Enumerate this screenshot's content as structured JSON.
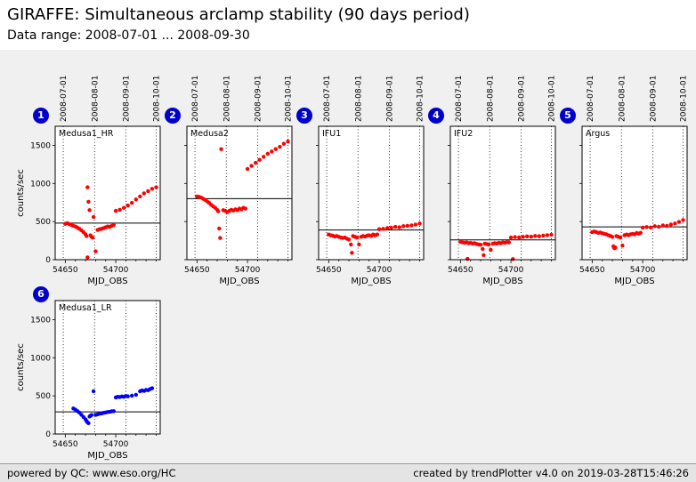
{
  "header": {
    "title": "GIRAFFE: Simultaneous arclamp stability (90 days period)",
    "subtitle": "Data range: 2008-07-01 ... 2008-09-30"
  },
  "footer": {
    "powered_by": "powered by QC:",
    "link": "www.eso.org/HC",
    "created": "created by trendPlotter v4.0 on 2019-03-28T15:46:26"
  },
  "colors": {
    "badge": "#0000cc",
    "red": "#ff0000",
    "blue": "#0000ff",
    "page_background": "#f0f0f0",
    "plot_background": "#ffffff"
  },
  "axis": {
    "xlabel": "MJD_OBS",
    "ylabel": "counts/sec",
    "xlim": [
      54640,
      54744
    ],
    "ylim": [
      0,
      1750
    ],
    "xticks": [
      54650,
      54700
    ],
    "yticks": [
      0,
      500,
      1000,
      1500
    ],
    "date_ticks": [
      {
        "label": "2008-07-01",
        "mjd": 54648
      },
      {
        "label": "2008-08-01",
        "mjd": 54679
      },
      {
        "label": "2008-09-01",
        "mjd": 54710
      },
      {
        "label": "2008-10-01",
        "mjd": 54740
      }
    ]
  },
  "chart_data": [
    {
      "index": 1,
      "row": 1,
      "col": 1,
      "type": "scatter",
      "title": "Medusa1_HR",
      "color": "#ff0000",
      "ref_line": 480,
      "x": [
        54650,
        54652,
        54654,
        54656,
        54658,
        54660,
        54662,
        54664,
        54666,
        54668,
        54670,
        54671,
        54672,
        54672,
        54673,
        54674,
        54675,
        54676,
        54677,
        54678,
        54680,
        54682,
        54684,
        54686,
        54688,
        54690,
        54692,
        54694,
        54696,
        54698,
        54700,
        54704,
        54708,
        54712,
        54716,
        54720,
        54724,
        54728,
        54732,
        54736,
        54740
      ],
      "y": [
        470,
        480,
        465,
        455,
        445,
        435,
        420,
        405,
        385,
        360,
        335,
        310,
        950,
        30,
        760,
        650,
        320,
        300,
        290,
        560,
        110,
        390,
        400,
        405,
        415,
        425,
        435,
        430,
        445,
        455,
        640,
        655,
        680,
        710,
        745,
        790,
        830,
        870,
        900,
        930,
        950
      ]
    },
    {
      "index": 2,
      "row": 1,
      "col": 2,
      "type": "scatter",
      "title": "Medusa2",
      "color": "#ff0000",
      "ref_line": 800,
      "x": [
        54650,
        54652,
        54654,
        54656,
        54658,
        54660,
        54662,
        54664,
        54666,
        54668,
        54670,
        54671,
        54672,
        54673,
        54674,
        54676,
        54678,
        54680,
        54682,
        54684,
        54686,
        54688,
        54690,
        54692,
        54694,
        54696,
        54698,
        54700,
        54704,
        54708,
        54712,
        54716,
        54720,
        54724,
        54728,
        54732,
        54736,
        54740
      ],
      "y": [
        830,
        825,
        815,
        800,
        785,
        765,
        745,
        720,
        700,
        680,
        655,
        635,
        410,
        285,
        1450,
        650,
        640,
        625,
        640,
        655,
        645,
        660,
        650,
        670,
        660,
        680,
        670,
        1190,
        1230,
        1270,
        1310,
        1350,
        1390,
        1420,
        1450,
        1480,
        1520,
        1550
      ]
    },
    {
      "index": 3,
      "row": 1,
      "col": 3,
      "type": "scatter",
      "title": "IFU1",
      "color": "#ff0000",
      "ref_line": 390,
      "x": [
        54650,
        54652,
        54654,
        54656,
        54658,
        54660,
        54662,
        54664,
        54666,
        54668,
        54670,
        54672,
        54673,
        54674,
        54676,
        54678,
        54680,
        54682,
        54684,
        54686,
        54688,
        54690,
        54692,
        54694,
        54696,
        54698,
        54700,
        54704,
        54708,
        54712,
        54716,
        54720,
        54724,
        54728,
        54732,
        54736,
        54740
      ],
      "y": [
        330,
        320,
        315,
        305,
        310,
        300,
        290,
        285,
        290,
        275,
        265,
        200,
        90,
        310,
        300,
        290,
        200,
        300,
        310,
        305,
        315,
        320,
        310,
        330,
        320,
        330,
        400,
        405,
        415,
        420,
        430,
        425,
        440,
        445,
        450,
        460,
        475
      ]
    },
    {
      "index": 4,
      "row": 1,
      "col": 4,
      "type": "scatter",
      "title": "IFU2",
      "color": "#ff0000",
      "ref_line": 260,
      "x": [
        54650,
        54652,
        54654,
        54656,
        54657,
        54658,
        54660,
        54662,
        54664,
        54666,
        54668,
        54670,
        54672,
        54673,
        54674,
        54676,
        54678,
        54680,
        54682,
        54684,
        54686,
        54688,
        54690,
        54692,
        54694,
        54696,
        54698,
        54700,
        54702,
        54704,
        54708,
        54712,
        54716,
        54720,
        54724,
        54728,
        54732,
        54736,
        54740
      ],
      "y": [
        235,
        228,
        222,
        226,
        10,
        216,
        220,
        212,
        216,
        206,
        200,
        196,
        140,
        60,
        210,
        205,
        200,
        130,
        210,
        216,
        212,
        220,
        216,
        226,
        222,
        230,
        226,
        290,
        8,
        296,
        292,
        300,
        306,
        302,
        312,
        308,
        316,
        322,
        328
      ]
    },
    {
      "index": 5,
      "row": 1,
      "col": 5,
      "type": "scatter",
      "title": "Argus",
      "color": "#ff0000",
      "ref_line": 430,
      "x": [
        54650,
        54652,
        54654,
        54656,
        54658,
        54660,
        54662,
        54664,
        54666,
        54668,
        54670,
        54671,
        54672,
        54673,
        54674,
        54676,
        54678,
        54680,
        54682,
        54684,
        54686,
        54688,
        54690,
        54692,
        54694,
        54696,
        54698,
        54700,
        54704,
        54708,
        54712,
        54716,
        54720,
        54724,
        54728,
        54732,
        54736,
        54740
      ],
      "y": [
        360,
        370,
        362,
        352,
        356,
        346,
        340,
        332,
        322,
        312,
        300,
        175,
        150,
        160,
        310,
        300,
        292,
        185,
        320,
        330,
        322,
        332,
        340,
        332,
        350,
        342,
        352,
        420,
        428,
        422,
        440,
        432,
        450,
        445,
        462,
        475,
        495,
        520
      ]
    },
    {
      "index": 6,
      "row": 2,
      "col": 1,
      "type": "scatter",
      "title": "Medusa1_LR",
      "color": "#0000ff",
      "ref_line": 290,
      "x": [
        54658,
        54660,
        54662,
        54664,
        54666,
        54668,
        54670,
        54671,
        54672,
        54673,
        54674,
        54675,
        54676,
        54678,
        54680,
        54682,
        54684,
        54686,
        54688,
        54690,
        54692,
        54694,
        54696,
        54698,
        54700,
        54702,
        54704,
        54706,
        54708,
        54710,
        54712,
        54716,
        54720,
        54724,
        54726,
        54728,
        54730,
        54732,
        54734,
        54736
      ],
      "y": [
        335,
        320,
        300,
        280,
        252,
        222,
        192,
        172,
        152,
        142,
        230,
        238,
        248,
        560,
        250,
        258,
        266,
        270,
        278,
        282,
        288,
        290,
        298,
        300,
        480,
        488,
        484,
        492,
        488,
        498,
        494,
        502,
        515,
        560,
        570,
        565,
        578,
        574,
        590,
        600
      ]
    }
  ]
}
